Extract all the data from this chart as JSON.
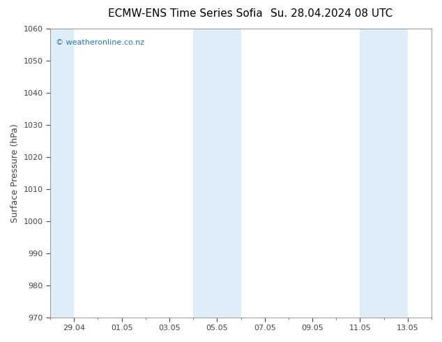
{
  "title_left": "ECMW-ENS Time Series Sofia",
  "title_right": "Su. 28.04.2024 08 UTC",
  "ylabel": "Surface Pressure (hPa)",
  "ylim": [
    970,
    1060
  ],
  "yticks": [
    970,
    980,
    990,
    1000,
    1010,
    1020,
    1030,
    1040,
    1050,
    1060
  ],
  "xtick_labels": [
    "29.04",
    "01.05",
    "03.05",
    "05.05",
    "07.05",
    "09.05",
    "11.05",
    "13.05"
  ],
  "background_color": "#ffffff",
  "plot_bg_color": "#ffffff",
  "shaded_color": "#ddeef8",
  "watermark_text": "© weatheronline.co.nz",
  "watermark_color": "#1a7abf",
  "watermark_fontsize": 8,
  "title_fontsize": 11,
  "tick_fontsize": 8,
  "ylabel_fontsize": 9,
  "tick_color": "#444444",
  "spine_color": "#888888"
}
